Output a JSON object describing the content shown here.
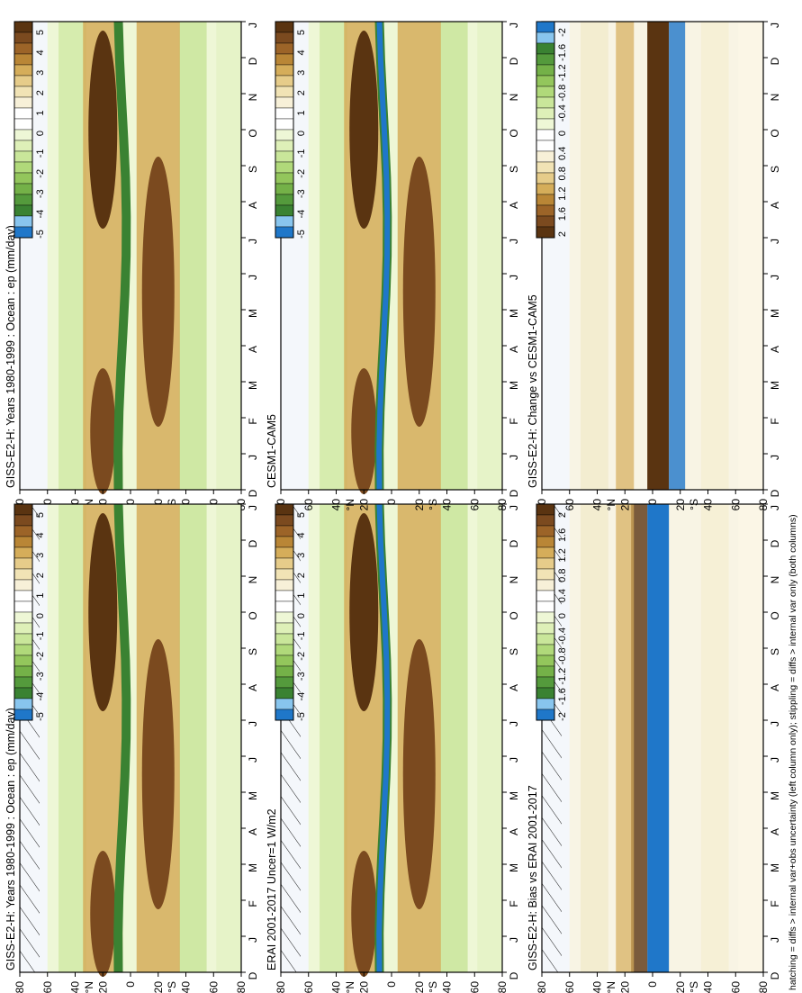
{
  "figure": {
    "footnote": "hatching = diffs > internal var+obs uncertainty (left column only); stippling = diffs > internal var only (both columns)",
    "month_ticks": [
      "D",
      "J",
      "F",
      "M",
      "A",
      "M",
      "J",
      "J",
      "A",
      "S",
      "O",
      "N",
      "D",
      "J"
    ],
    "lat_ticks": [
      "80",
      "60",
      "40",
      "20",
      "0",
      "20",
      "40",
      "60",
      "80"
    ],
    "lat_hemi": {
      "north": "°N",
      "south": "°S"
    }
  },
  "colorbars": {
    "absolute": {
      "labels": [
        "5",
        "4",
        "3",
        "2",
        "1",
        "0",
        "-1",
        "-2",
        "-3",
        "-4",
        "-5"
      ],
      "colors": [
        "#5a3411",
        "#7b4a1f",
        "#9c6428",
        "#b98636",
        "#d5ad5a",
        "#e6cc8a",
        "#f1e3b5",
        "#f7f0d8",
        "#ffffff",
        "#ffffff",
        "#eef7d6",
        "#def0b8",
        "#c9e69a",
        "#b0d97a",
        "#93c65c",
        "#74b148",
        "#549a3c",
        "#3a8232",
        "#88c5ee",
        "#1f77c9"
      ]
    },
    "difference": {
      "labels": [
        "2",
        "1.6",
        "1.2",
        "0.8",
        "0.4",
        "0",
        "-0.4",
        "-0.8",
        "-1.2",
        "-1.6",
        "-2"
      ],
      "colors": [
        "#5a3411",
        "#7b4a1f",
        "#9c6428",
        "#b98636",
        "#d5ad5a",
        "#e6cc8a",
        "#f1e3b5",
        "#f7f0d8",
        "#ffffff",
        "#ffffff",
        "#eef7d6",
        "#def0b8",
        "#c9e69a",
        "#b0d97a",
        "#93c65c",
        "#74b148",
        "#549a3c",
        "#3a8232",
        "#88c5ee",
        "#1f77c9"
      ]
    }
  },
  "chart_data": [
    {
      "type": "heatmap",
      "title": "GISS-E2-H: Years 1980-1999 : Ocean : ep (mm/day)",
      "x": "month (D to J)",
      "y": "latitude (80N to 80S)",
      "variable": "ep",
      "units": "mm/day",
      "ylim": [
        -80,
        80
      ],
      "colorbar": "absolute",
      "features": [
        "ITCZ evaporation minus precipitation minimum near 5N-10N",
        "subtropical maxima near 20N and 20S up to 5 mm/day"
      ]
    },
    {
      "type": "heatmap",
      "title": "GISS-E2-H: Years 1980-1999 : Ocean : ep (mm/day)",
      "x": "month (D to J)",
      "y": "latitude (80N to 80S)",
      "variable": "ep",
      "units": "mm/day",
      "ylim": [
        -80,
        80
      ],
      "colorbar": "absolute"
    },
    {
      "type": "heatmap",
      "title": "ERAI 2001-2017 Uncer=1 W/m2",
      "x": "month (D to J)",
      "y": "latitude (80N to 80S)",
      "units": "mm/day",
      "ylim": [
        -80,
        80
      ],
      "colorbar": "absolute"
    },
    {
      "type": "heatmap",
      "title": "CESM1-CAM5",
      "x": "month (D to J)",
      "y": "latitude (80N to 80S)",
      "units": "mm/day",
      "ylim": [
        -80,
        80
      ],
      "colorbar": "absolute"
    },
    {
      "type": "heatmap",
      "title": "GISS-E2-H: Bias vs ERAI 2001-2017",
      "x": "month (D to J)",
      "y": "latitude (80N to 80S)",
      "units": "mm/day",
      "ylim": [
        -80,
        80
      ],
      "colorbar": "difference"
    },
    {
      "type": "heatmap",
      "title": "GISS-E2-H: Change vs CESM1-CAM5",
      "x": "month (D to J)",
      "y": "latitude (80N to 80S)",
      "units": "mm/day",
      "ylim": [
        -80,
        80
      ],
      "colorbar": "difference"
    }
  ]
}
